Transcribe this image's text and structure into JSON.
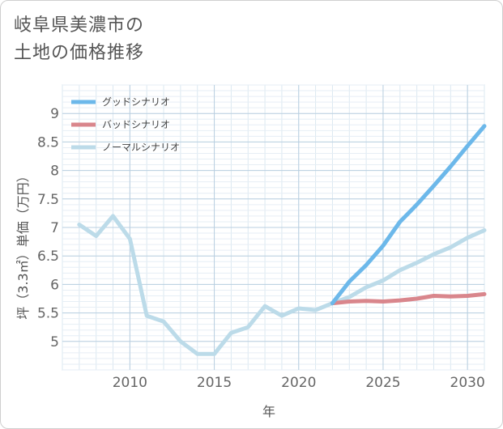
{
  "title_line1": "岐阜県美濃市の",
  "title_line2": "土地の価格推移",
  "chart_data": {
    "type": "line",
    "xlabel": "年",
    "ylabel": "坪（3.3㎡）単価（万円）",
    "xlim": [
      2006,
      2031
    ],
    "ylim": [
      4.5,
      9.5
    ],
    "x_ticks": [
      2010,
      2015,
      2020,
      2025,
      2030
    ],
    "y_ticks": [
      5,
      5.5,
      6,
      6.5,
      7,
      7.5,
      8,
      8.5,
      9
    ],
    "grid": true,
    "legend_position": "top-left",
    "series": [
      {
        "name": "グッドシナリオ",
        "color": "#6cb8ea",
        "x": [
          2022,
          2023,
          2024,
          2025,
          2026,
          2027,
          2028,
          2029,
          2030,
          2031
        ],
        "y": [
          5.67,
          6.05,
          6.34,
          6.68,
          7.1,
          7.4,
          7.73,
          8.07,
          8.43,
          8.78
        ]
      },
      {
        "name": "バッドシナリオ",
        "color": "#d9868c",
        "x": [
          2022,
          2023,
          2024,
          2025,
          2026,
          2027,
          2028,
          2029,
          2030,
          2031
        ],
        "y": [
          5.67,
          5.7,
          5.71,
          5.7,
          5.72,
          5.75,
          5.8,
          5.79,
          5.8,
          5.83
        ]
      },
      {
        "name": "ノーマルシナリオ",
        "color": "#bcdbe9",
        "x": [
          2007,
          2008,
          2009,
          2010,
          2011,
          2012,
          2013,
          2014,
          2015,
          2016,
          2017,
          2018,
          2019,
          2020,
          2021,
          2022,
          2023,
          2024,
          2025,
          2026,
          2027,
          2028,
          2029,
          2030,
          2031
        ],
        "y": [
          7.05,
          6.85,
          7.2,
          6.8,
          5.45,
          5.35,
          5.0,
          4.78,
          4.78,
          5.15,
          5.25,
          5.62,
          5.45,
          5.58,
          5.55,
          5.67,
          5.78,
          5.95,
          6.07,
          6.25,
          6.38,
          6.53,
          6.65,
          6.82,
          6.95
        ]
      }
    ]
  }
}
